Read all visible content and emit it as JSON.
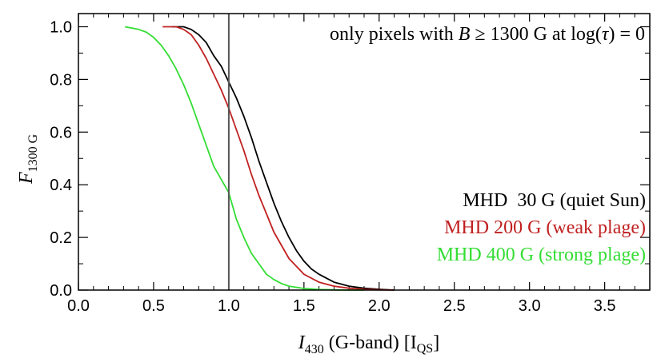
{
  "chart_data": {
    "type": "line",
    "annotation": {
      "prefix": "only pixels with ",
      "var": "B",
      "rel": " ≥ 1300 G at log(",
      "tau": "τ",
      "suffix": ") = 0"
    },
    "xlabel": {
      "var": "I",
      "sub": "430",
      "text": " (G-band) [I",
      "unit_sub": "QS",
      "close": "]"
    },
    "ylabel": {
      "var": "F",
      "sub": "1300 G"
    },
    "xlim": [
      0.0,
      3.8
    ],
    "ylim": [
      0.0,
      1.05
    ],
    "x_ticks": [
      0.0,
      0.5,
      1.0,
      1.5,
      2.0,
      2.5,
      3.0,
      3.5
    ],
    "x_tick_labels": [
      "0.0",
      "0.5",
      "1.0",
      "1.5",
      "2.0",
      "2.5",
      "3.0",
      "3.5"
    ],
    "y_ticks": [
      0.0,
      0.2,
      0.4,
      0.6,
      0.8,
      1.0
    ],
    "y_tick_labels": [
      "0.0",
      "0.2",
      "0.4",
      "0.6",
      "0.8",
      "1.0"
    ],
    "vline_x": 1.0,
    "legend_position": "center-right",
    "series": [
      {
        "name": "MHD  30 G (quiet Sun)",
        "color": "#000000",
        "x": [
          0.62,
          0.7,
          0.75,
          0.8,
          0.85,
          0.9,
          0.95,
          1.0,
          1.05,
          1.1,
          1.15,
          1.2,
          1.25,
          1.3,
          1.35,
          1.4,
          1.45,
          1.5,
          1.55,
          1.6,
          1.7,
          1.8,
          1.9,
          2.0,
          2.1
        ],
        "y": [
          1.0,
          1.0,
          0.99,
          0.97,
          0.94,
          0.89,
          0.85,
          0.79,
          0.73,
          0.66,
          0.58,
          0.49,
          0.41,
          0.33,
          0.26,
          0.2,
          0.15,
          0.11,
          0.08,
          0.06,
          0.03,
          0.015,
          0.007,
          0.003,
          0.0
        ]
      },
      {
        "name": "MHD 200 G (weak plage)",
        "color": "#c02020",
        "x": [
          0.56,
          0.65,
          0.7,
          0.75,
          0.8,
          0.85,
          0.9,
          0.95,
          1.0,
          1.05,
          1.1,
          1.15,
          1.2,
          1.25,
          1.3,
          1.35,
          1.4,
          1.45,
          1.5,
          1.6,
          1.7,
          1.8,
          1.9,
          2.0,
          2.1
        ],
        "y": [
          1.0,
          1.0,
          0.99,
          0.97,
          0.93,
          0.88,
          0.82,
          0.76,
          0.69,
          0.61,
          0.53,
          0.44,
          0.36,
          0.29,
          0.22,
          0.17,
          0.12,
          0.09,
          0.06,
          0.03,
          0.015,
          0.007,
          0.003,
          0.001,
          0.0
        ]
      },
      {
        "name": "MHD 400 G (strong plage)",
        "color": "#33dd33",
        "x": [
          0.31,
          0.4,
          0.45,
          0.5,
          0.55,
          0.6,
          0.65,
          0.7,
          0.75,
          0.8,
          0.85,
          0.9,
          0.95,
          1.0,
          1.05,
          1.1,
          1.15,
          1.2,
          1.25,
          1.3,
          1.35,
          1.4,
          1.5,
          1.6,
          1.7,
          1.8,
          1.9
        ],
        "y": [
          1.0,
          0.99,
          0.98,
          0.96,
          0.93,
          0.89,
          0.84,
          0.78,
          0.71,
          0.63,
          0.55,
          0.47,
          0.42,
          0.37,
          0.27,
          0.2,
          0.14,
          0.1,
          0.06,
          0.04,
          0.025,
          0.015,
          0.006,
          0.002,
          0.001,
          0.0,
          0.0
        ]
      }
    ]
  }
}
